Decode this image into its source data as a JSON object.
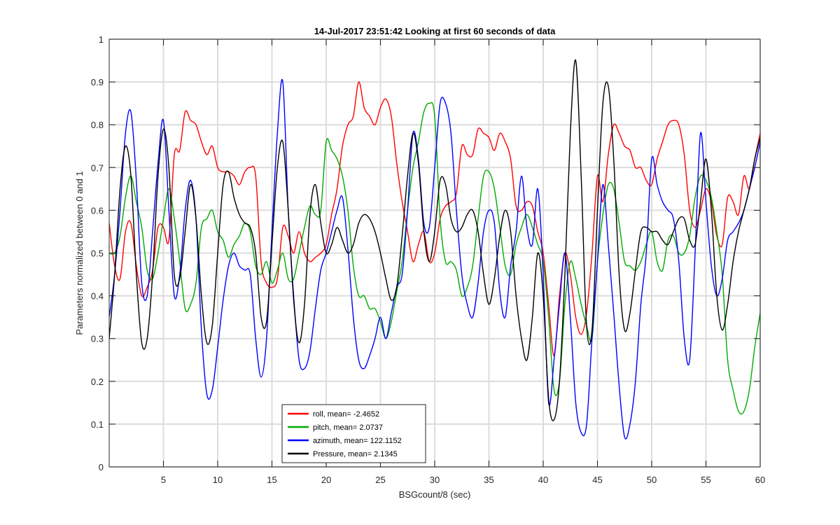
{
  "chart_data": {
    "type": "line",
    "title": "14-Jul-2017 23:51:42 Looking at first 60 seconds of data",
    "xlabel": "BSGcount/8 (sec)",
    "ylabel": "Parameters normalized between 0 and 1",
    "xlim": [
      0,
      60
    ],
    "ylim": [
      0,
      1
    ],
    "xticks": [
      5,
      10,
      15,
      20,
      25,
      30,
      35,
      40,
      45,
      50,
      55,
      60
    ],
    "xtick_labels": [
      "5",
      "10",
      "15",
      "20",
      "25",
      "30",
      "35",
      "40",
      "45",
      "50",
      "55",
      "60"
    ],
    "yticks": [
      0,
      0.1,
      0.2,
      0.3,
      0.4,
      0.5,
      0.6,
      0.7,
      0.8,
      0.9,
      1
    ],
    "ytick_labels": [
      "0",
      "0.1",
      "0.2",
      "0.3",
      "0.4",
      "0.5",
      "0.6",
      "0.7",
      "0.8",
      "0.9",
      "1"
    ],
    "grid": true,
    "legend_position": "bottom-left",
    "series": [
      {
        "name": "roll, mean= -2.4652",
        "color": "#ff0000",
        "x": [
          0,
          0.5,
          1,
          1.5,
          2,
          2.5,
          3,
          3.5,
          4,
          4.5,
          5,
          5.5,
          6,
          6.5,
          7,
          7.5,
          8,
          8.5,
          9,
          9.5,
          10,
          10.5,
          11,
          11.5,
          12,
          12.5,
          13,
          13.5,
          14,
          14.5,
          15,
          15.5,
          16,
          16.5,
          17,
          17.5,
          18,
          18.5,
          19,
          19.5,
          20,
          20.5,
          21,
          21.5,
          22,
          22.5,
          23,
          23.5,
          24,
          24.5,
          25,
          25.5,
          26,
          26.5,
          27,
          27.5,
          28,
          28.5,
          29,
          29.5,
          30,
          30.5,
          31,
          31.5,
          32,
          32.5,
          33,
          33.5,
          34,
          34.5,
          35,
          35.5,
          36,
          36.5,
          37,
          37.5,
          38,
          38.5,
          39,
          39.5,
          40,
          40.5,
          41,
          41.5,
          42,
          42.5,
          43,
          43.5,
          44,
          44.5,
          45,
          45.5,
          46,
          46.5,
          47,
          47.5,
          48,
          48.5,
          49,
          49.5,
          50,
          50.5,
          51,
          51.5,
          52,
          52.5,
          53,
          53.5,
          54,
          54.5,
          55,
          55.5,
          56,
          56.5,
          57,
          57.5,
          58,
          58.5,
          59,
          59.5,
          60
        ],
        "values": [
          0.57,
          0.47,
          0.44,
          0.55,
          0.57,
          0.47,
          0.4,
          0.42,
          0.46,
          0.56,
          0.56,
          0.53,
          0.73,
          0.74,
          0.83,
          0.81,
          0.8,
          0.76,
          0.73,
          0.75,
          0.7,
          0.69,
          0.69,
          0.68,
          0.66,
          0.69,
          0.7,
          0.68,
          0.48,
          0.43,
          0.42,
          0.44,
          0.56,
          0.54,
          0.5,
          0.55,
          0.5,
          0.48,
          0.49,
          0.5,
          0.52,
          0.59,
          0.65,
          0.75,
          0.8,
          0.82,
          0.9,
          0.84,
          0.82,
          0.8,
          0.84,
          0.86,
          0.82,
          0.71,
          0.62,
          0.55,
          0.48,
          0.52,
          0.55,
          0.48,
          0.5,
          0.58,
          0.61,
          0.62,
          0.64,
          0.75,
          0.73,
          0.73,
          0.79,
          0.78,
          0.77,
          0.74,
          0.78,
          0.76,
          0.72,
          0.61,
          0.6,
          0.62,
          0.61,
          0.55,
          0.5,
          0.38,
          0.26,
          0.4,
          0.5,
          0.45,
          0.35,
          0.31,
          0.36,
          0.5,
          0.68,
          0.62,
          0.73,
          0.8,
          0.78,
          0.75,
          0.74,
          0.7,
          0.7,
          0.67,
          0.66,
          0.72,
          0.76,
          0.8,
          0.81,
          0.8,
          0.73,
          0.6,
          0.56,
          0.6,
          0.65,
          0.62,
          0.54,
          0.52,
          0.63,
          0.62,
          0.59,
          0.68,
          0.65,
          0.72,
          0.78
        ]
      },
      {
        "name": "pitch, mean= 2.0737",
        "color": "#00aa00",
        "x": [
          0,
          0.5,
          1,
          1.5,
          2,
          2.5,
          3,
          3.5,
          4,
          4.5,
          5,
          5.5,
          6,
          6.5,
          7,
          7.5,
          8,
          8.5,
          9,
          9.5,
          10,
          10.5,
          11,
          11.5,
          12,
          12.5,
          13,
          13.5,
          14,
          14.5,
          15,
          15.5,
          16,
          16.5,
          17,
          17.5,
          18,
          18.5,
          19,
          19.5,
          20,
          20.5,
          21,
          21.5,
          22,
          22.5,
          23,
          23.5,
          24,
          24.5,
          25,
          25.5,
          26,
          26.5,
          27,
          27.5,
          28,
          28.5,
          29,
          29.5,
          30,
          30.5,
          31,
          31.5,
          32,
          32.5,
          33,
          33.5,
          34,
          34.5,
          35,
          35.5,
          36,
          36.5,
          37,
          37.5,
          38,
          38.5,
          39,
          39.5,
          40,
          40.5,
          41,
          41.5,
          42,
          42.5,
          43,
          43.5,
          44,
          44.5,
          45,
          45.5,
          46,
          46.5,
          47,
          47.5,
          48,
          48.5,
          49,
          49.5,
          50,
          50.5,
          51,
          51.5,
          52,
          52.5,
          53,
          53.5,
          54,
          54.5,
          55,
          55.5,
          56,
          56.5,
          57,
          57.5,
          58,
          58.5,
          59,
          59.5,
          60
        ],
        "values": [
          0.5,
          0.5,
          0.54,
          0.63,
          0.68,
          0.62,
          0.56,
          0.46,
          0.44,
          0.5,
          0.58,
          0.65,
          0.58,
          0.48,
          0.37,
          0.38,
          0.43,
          0.56,
          0.58,
          0.6,
          0.55,
          0.53,
          0.49,
          0.52,
          0.54,
          0.57,
          0.55,
          0.47,
          0.45,
          0.48,
          0.43,
          0.46,
          0.5,
          0.44,
          0.44,
          0.5,
          0.56,
          0.61,
          0.59,
          0.6,
          0.76,
          0.74,
          0.72,
          0.68,
          0.6,
          0.47,
          0.4,
          0.4,
          0.37,
          0.37,
          0.34,
          0.3,
          0.34,
          0.41,
          0.48,
          0.6,
          0.7,
          0.76,
          0.83,
          0.85,
          0.82,
          0.58,
          0.48,
          0.48,
          0.46,
          0.4,
          0.42,
          0.47,
          0.58,
          0.68,
          0.69,
          0.65,
          0.56,
          0.47,
          0.45,
          0.52,
          0.56,
          0.59,
          0.56,
          0.52,
          0.48,
          0.35,
          0.18,
          0.2,
          0.38,
          0.48,
          0.44,
          0.38,
          0.33,
          0.3,
          0.48,
          0.59,
          0.66,
          0.65,
          0.57,
          0.48,
          0.47,
          0.46,
          0.48,
          0.52,
          0.55,
          0.48,
          0.46,
          0.53,
          0.54,
          0.5,
          0.5,
          0.54,
          0.63,
          0.68,
          0.67,
          0.63,
          0.55,
          0.45,
          0.25,
          0.18,
          0.13,
          0.13,
          0.18,
          0.28,
          0.36
        ]
      },
      {
        "name": "azimuth, mean= 122.1152",
        "color": "#0000ff",
        "x": [
          0,
          0.5,
          1,
          1.5,
          2,
          2.5,
          3,
          3.5,
          4,
          4.5,
          5,
          5.5,
          6,
          6.5,
          7,
          7.5,
          8,
          8.5,
          9,
          9.5,
          10,
          10.5,
          11,
          11.5,
          12,
          12.5,
          13,
          13.5,
          14,
          14.5,
          15,
          15.5,
          16,
          16.5,
          17,
          17.5,
          18,
          18.5,
          19,
          19.5,
          20,
          20.5,
          21,
          21.5,
          22,
          22.5,
          23,
          23.5,
          24,
          24.5,
          25,
          25.5,
          26,
          26.5,
          27,
          27.5,
          28,
          28.5,
          29,
          29.5,
          30,
          30.5,
          31,
          31.5,
          32,
          32.5,
          33,
          33.5,
          34,
          34.5,
          35,
          35.5,
          36,
          36.5,
          37,
          37.5,
          38,
          38.5,
          39,
          39.5,
          40,
          40.5,
          41,
          41.5,
          42,
          42.5,
          43,
          43.5,
          44,
          44.5,
          45,
          45.5,
          46,
          46.5,
          47,
          47.5,
          48,
          48.5,
          49,
          49.5,
          50,
          50.5,
          51,
          51.5,
          52,
          52.5,
          53,
          53.5,
          54,
          54.5,
          55,
          55.5,
          56,
          56.5,
          57,
          57.5,
          58,
          58.5,
          59,
          59.5,
          60
        ],
        "values": [
          0.35,
          0.45,
          0.6,
          0.78,
          0.83,
          0.67,
          0.43,
          0.4,
          0.55,
          0.71,
          0.81,
          0.6,
          0.4,
          0.45,
          0.6,
          0.67,
          0.58,
          0.32,
          0.17,
          0.18,
          0.28,
          0.39,
          0.47,
          0.5,
          0.47,
          0.46,
          0.45,
          0.3,
          0.21,
          0.3,
          0.55,
          0.78,
          0.9,
          0.6,
          0.4,
          0.25,
          0.23,
          0.27,
          0.37,
          0.46,
          0.5,
          0.55,
          0.6,
          0.63,
          0.51,
          0.35,
          0.25,
          0.23,
          0.26,
          0.3,
          0.35,
          0.3,
          0.36,
          0.42,
          0.45,
          0.6,
          0.78,
          0.72,
          0.57,
          0.56,
          0.7,
          0.85,
          0.85,
          0.78,
          0.6,
          0.45,
          0.38,
          0.35,
          0.43,
          0.55,
          0.6,
          0.57,
          0.41,
          0.35,
          0.47,
          0.55,
          0.68,
          0.56,
          0.52,
          0.65,
          0.45,
          0.15,
          0.25,
          0.38,
          0.5,
          0.35,
          0.15,
          0.08,
          0.1,
          0.3,
          0.48,
          0.66,
          0.52,
          0.36,
          0.19,
          0.07,
          0.1,
          0.2,
          0.38,
          0.5,
          0.72,
          0.66,
          0.62,
          0.6,
          0.58,
          0.48,
          0.3,
          0.25,
          0.5,
          0.78,
          0.62,
          0.47,
          0.4,
          0.44,
          0.53,
          0.55,
          0.57,
          0.6,
          0.65,
          0.7,
          0.76
        ]
      },
      {
        "name": "Pressure, mean= 2.1345",
        "color": "#000000",
        "x": [
          0,
          0.5,
          1,
          1.5,
          2,
          2.5,
          3,
          3.5,
          4,
          4.5,
          5,
          5.5,
          6,
          6.5,
          7,
          7.5,
          8,
          8.5,
          9,
          9.5,
          10,
          10.5,
          11,
          11.5,
          12,
          12.5,
          13,
          13.5,
          14,
          14.5,
          15,
          15.5,
          16,
          16.5,
          17,
          17.5,
          18,
          18.5,
          19,
          19.5,
          20,
          20.5,
          21,
          21.5,
          22,
          22.5,
          23,
          23.5,
          24,
          24.5,
          25,
          25.5,
          26,
          26.5,
          27,
          27.5,
          28,
          28.5,
          29,
          29.5,
          30,
          30.5,
          31,
          31.5,
          32,
          32.5,
          33,
          33.5,
          34,
          34.5,
          35,
          35.5,
          36,
          36.5,
          37,
          37.5,
          38,
          38.5,
          39,
          39.5,
          40,
          40.5,
          41,
          41.5,
          42,
          42.5,
          43,
          43.5,
          44,
          44.5,
          45,
          45.5,
          46,
          46.5,
          47,
          47.5,
          48,
          48.5,
          49,
          49.5,
          50,
          50.5,
          51,
          51.5,
          52,
          52.5,
          53,
          53.5,
          54,
          54.5,
          55,
          55.5,
          56,
          56.5,
          57,
          57.5,
          58,
          58.5,
          59,
          59.5,
          60
        ],
        "values": [
          0.3,
          0.45,
          0.65,
          0.75,
          0.68,
          0.45,
          0.29,
          0.3,
          0.45,
          0.68,
          0.79,
          0.7,
          0.45,
          0.44,
          0.55,
          0.66,
          0.58,
          0.4,
          0.29,
          0.33,
          0.5,
          0.66,
          0.69,
          0.63,
          0.59,
          0.57,
          0.56,
          0.5,
          0.35,
          0.34,
          0.52,
          0.7,
          0.76,
          0.6,
          0.39,
          0.29,
          0.38,
          0.59,
          0.66,
          0.57,
          0.5,
          0.52,
          0.56,
          0.53,
          0.5,
          0.52,
          0.57,
          0.59,
          0.58,
          0.55,
          0.5,
          0.44,
          0.39,
          0.42,
          0.54,
          0.68,
          0.78,
          0.71,
          0.55,
          0.48,
          0.55,
          0.67,
          0.66,
          0.58,
          0.55,
          0.56,
          0.59,
          0.6,
          0.55,
          0.45,
          0.38,
          0.44,
          0.54,
          0.6,
          0.55,
          0.4,
          0.3,
          0.25,
          0.35,
          0.5,
          0.4,
          0.16,
          0.11,
          0.2,
          0.45,
          0.78,
          0.95,
          0.68,
          0.33,
          0.32,
          0.6,
          0.85,
          0.89,
          0.72,
          0.45,
          0.32,
          0.36,
          0.46,
          0.55,
          0.56,
          0.55,
          0.55,
          0.53,
          0.52,
          0.55,
          0.58,
          0.58,
          0.53,
          0.52,
          0.62,
          0.72,
          0.6,
          0.4,
          0.32,
          0.38,
          0.48,
          0.55,
          0.6,
          0.65,
          0.72,
          0.77
        ]
      }
    ]
  }
}
